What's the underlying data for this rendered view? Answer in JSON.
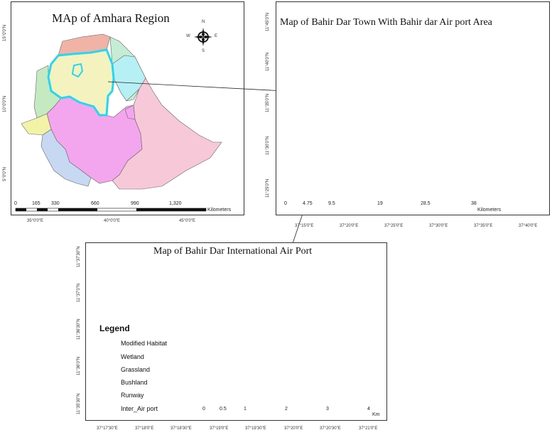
{
  "maps": {
    "amhara": {
      "title": "MAp of Amhara Region",
      "scale_labels": [
        "0",
        "165",
        "330",
        "660",
        "990",
        "1,320"
      ],
      "scale_unit": "Kilometers",
      "x_ticks": [
        "35°0'0\"E",
        "40°0'0\"E",
        "45°0'0\"E"
      ],
      "y_ticks": [
        "15°0'0\"N",
        "10°0'0\"N",
        "5°0'0\"N"
      ]
    },
    "bahirdar": {
      "title": "Map of Bahir Dar Town With Bahir dar Air port Area",
      "scale_labels": [
        "0",
        "4.75",
        "9.5",
        "19",
        "28.5",
        "38"
      ],
      "scale_unit": "Kilometers",
      "x_ticks": [
        "37°15'0\"E",
        "37°20'0\"E",
        "37°25'0\"E",
        "37°30'0\"E",
        "37°35'0\"E",
        "37°40'0\"E"
      ],
      "y_ticks": [
        "11°45'0\"N",
        "11°40'0\"N",
        "11°35'0\"N",
        "11°30'0\"N",
        "11°25'0\"N"
      ]
    },
    "airport": {
      "title": "Map of Bahir Dar International Air Port",
      "scale_labels": [
        "0",
        "0.5",
        "1",
        "2",
        "3",
        "4"
      ],
      "scale_unit": "Km",
      "x_ticks": [
        "37°17'30\"E",
        "37°18'0\"E",
        "37°18'30\"E",
        "37°19'0\"E",
        "37°19'30\"E",
        "37°20'0\"E",
        "37°20'30\"E",
        "37°21'0\"E"
      ],
      "y_ticks": [
        "11°37'30\"N",
        "11°37'0\"N",
        "11°36'30\"N",
        "11°36'0\"N",
        "11°35'30\"N"
      ]
    }
  },
  "compass": {
    "n": "N",
    "s": "S",
    "e": "E",
    "w": "W"
  },
  "legend": {
    "title": "Legend",
    "items": [
      {
        "label": "Modified Habitat",
        "symbol": "circle",
        "color": "#8b1a7a"
      },
      {
        "label": "Wetland",
        "symbol": "star",
        "color": "#111111"
      },
      {
        "label": "Grassland",
        "symbol": "circle",
        "color": "#2a9a2a"
      },
      {
        "label": "Bushland",
        "symbol": "circle",
        "color": "#1a237e"
      },
      {
        "label": "Runway",
        "symbol": "line",
        "color": "#e53a1e"
      },
      {
        "label": "Inter_Air port",
        "symbol": "polygon",
        "color": "#c9c9f2"
      }
    ]
  },
  "colors": {
    "study_area_fill": "#c9c9f2",
    "amhara_outline": "#27d6f0",
    "airport_highlight": "#f4a3a3",
    "runway": "#e53a1e"
  }
}
